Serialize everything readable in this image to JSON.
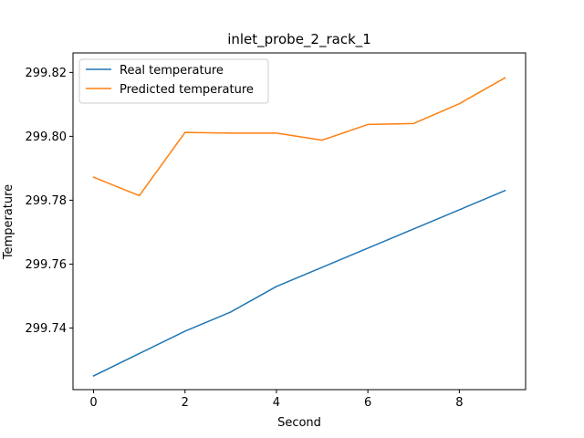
{
  "chart_data": {
    "type": "line",
    "title": "inlet_probe_2_rack_1",
    "xlabel": "Second",
    "ylabel": "Temperature",
    "x": [
      0,
      1,
      2,
      3,
      4,
      5,
      6,
      7,
      8,
      9
    ],
    "xlim": [
      -0.45,
      9.45
    ],
    "ylim": [
      299.7207,
      299.8261
    ],
    "xticks": [
      0,
      2,
      4,
      6,
      8
    ],
    "yticks": [
      299.74,
      299.76,
      299.78,
      299.8,
      299.82
    ],
    "ytick_labels": [
      "299.74",
      "299.76",
      "299.78",
      "299.80",
      "299.82"
    ],
    "grid": false,
    "legend_position": "top-left",
    "series": [
      {
        "name": "Real temperature",
        "color": "#1f77b4",
        "values": [
          299.725,
          299.732,
          299.739,
          299.745,
          299.753,
          299.759,
          299.765,
          299.771,
          299.777,
          299.783
        ]
      },
      {
        "name": "Predicted temperature",
        "color": "#ff7f0e",
        "values": [
          299.7872,
          299.7814,
          299.8012,
          299.801,
          299.801,
          299.7988,
          299.8037,
          299.804,
          299.8102,
          299.8183
        ]
      }
    ]
  }
}
